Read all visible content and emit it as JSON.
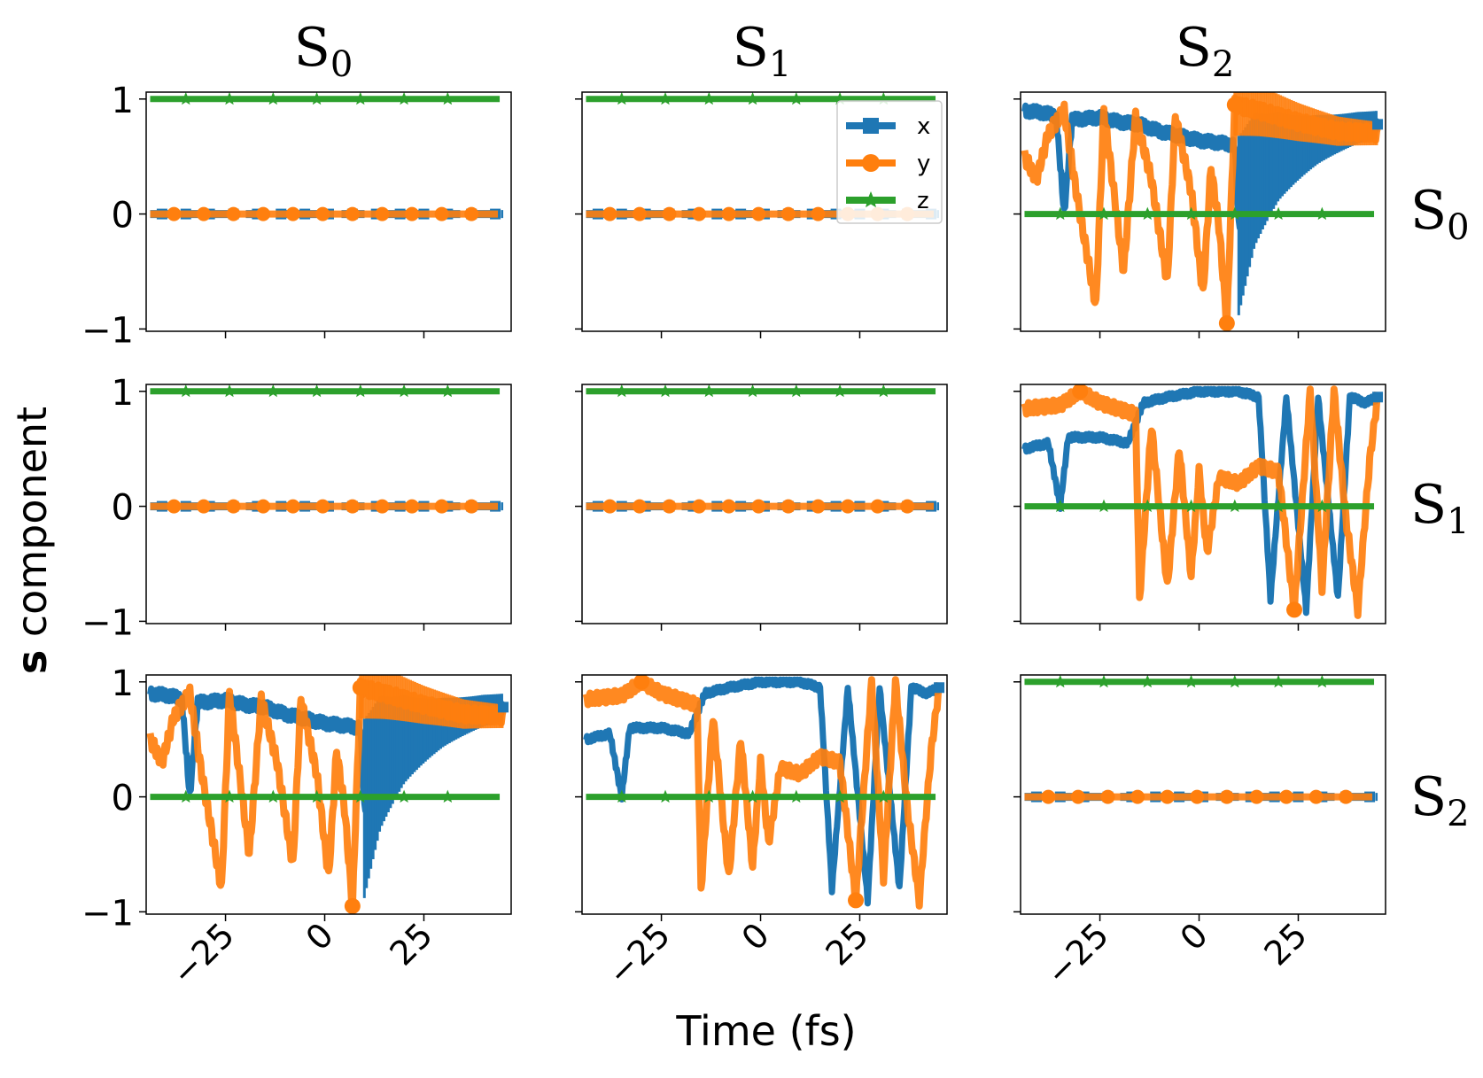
{
  "chart_data": {
    "type": "line",
    "xlabel": "Time (fs)",
    "ylabel_bold": "s",
    "ylabel_rest": " component",
    "column_titles": [
      {
        "base": "S",
        "sub": "0"
      },
      {
        "base": "S",
        "sub": "1"
      },
      {
        "base": "S",
        "sub": "2"
      }
    ],
    "row_titles": [
      {
        "base": "S",
        "sub": "0"
      },
      {
        "base": "S",
        "sub": "1"
      },
      {
        "base": "S",
        "sub": "2"
      }
    ],
    "xlim": [
      -45,
      47
    ],
    "ylim": [
      -1.02,
      1.06
    ],
    "xticks": [
      -25,
      0,
      25
    ],
    "xtick_labels": [
      "−25",
      "0",
      "25"
    ],
    "yticks": [
      1,
      0,
      -1
    ],
    "ytick_labels": [
      "1",
      "0",
      "−1"
    ],
    "legend": {
      "location": "upper right of panel row 1 / column 2",
      "entries": [
        {
          "label": "x",
          "color": "#1f77b4",
          "marker": "square"
        },
        {
          "label": "y",
          "color": "#ff7f0e",
          "marker": "circle"
        },
        {
          "label": "z",
          "color": "#2ca02c",
          "marker": "star"
        }
      ]
    },
    "colors": {
      "x": "#1f77b4",
      "y": "#ff7f0e",
      "z": "#2ca02c"
    },
    "panels": [
      {
        "row": 0,
        "col": 0,
        "kind": "constant",
        "series": {
          "x": 0,
          "y": 0,
          "z": 1
        }
      },
      {
        "row": 0,
        "col": 1,
        "kind": "constant",
        "series": {
          "x": 0,
          "y": 0,
          "z": 1
        }
      },
      {
        "row": 0,
        "col": 2,
        "kind": "oscillating",
        "pattern": "A",
        "series": {
          "z": 0
        },
        "x_profile": [
          [
            -44,
            0.9
          ],
          [
            -39,
            0.88
          ],
          [
            -36,
            0.85
          ],
          [
            -34,
            0.0
          ],
          [
            -32,
            0.82
          ],
          [
            -25,
            0.84
          ],
          [
            -20,
            0.8
          ],
          [
            -15,
            0.78
          ],
          [
            -10,
            0.72
          ],
          [
            -5,
            0.68
          ],
          [
            0,
            0.64
          ],
          [
            5,
            0.62
          ],
          [
            9,
            0.6
          ],
          [
            10,
            -0.1
          ],
          [
            14,
            0.3
          ],
          [
            20,
            0.5
          ],
          [
            30,
            0.65
          ],
          [
            40,
            0.75
          ],
          [
            45,
            0.78
          ]
        ],
        "y_profile": [
          [
            -44,
            0.5
          ],
          [
            -41,
            0.3
          ],
          [
            -38,
            0.7
          ],
          [
            -34,
            0.9
          ],
          [
            -31,
            0.2
          ],
          [
            -26,
            -0.8
          ],
          [
            -24,
            0.9
          ],
          [
            -19,
            -0.5
          ],
          [
            -16,
            0.85
          ],
          [
            -12,
            0.3
          ],
          [
            -8,
            -0.6
          ],
          [
            -6,
            0.85
          ],
          [
            -2,
            0.2
          ],
          [
            1,
            -0.7
          ],
          [
            3,
            0.4
          ],
          [
            5,
            -0.1
          ],
          [
            7,
            -0.95
          ],
          [
            9,
            0.95
          ],
          [
            15,
            0.9
          ],
          [
            25,
            0.8
          ],
          [
            35,
            0.72
          ],
          [
            45,
            0.7
          ]
        ]
      },
      {
        "row": 1,
        "col": 0,
        "kind": "constant",
        "series": {
          "x": 0,
          "y": 0,
          "z": 1
        }
      },
      {
        "row": 1,
        "col": 1,
        "kind": "constant",
        "series": {
          "x": 0,
          "y": 0,
          "z": 1
        }
      },
      {
        "row": 1,
        "col": 2,
        "kind": "oscillating",
        "pattern": "B",
        "series": {
          "z": 0
        },
        "x_profile": [
          [
            -44,
            0.5
          ],
          [
            -38,
            0.55
          ],
          [
            -35,
            0.0
          ],
          [
            -33,
            0.6
          ],
          [
            -25,
            0.6
          ],
          [
            -18,
            0.55
          ],
          [
            -14,
            0.9
          ],
          [
            -8,
            0.95
          ],
          [
            0,
            1.0
          ],
          [
            10,
            1.0
          ],
          [
            15,
            0.95
          ],
          [
            18,
            -0.8
          ],
          [
            22,
            0.95
          ],
          [
            27,
            -0.9
          ],
          [
            30,
            0.95
          ],
          [
            35,
            -0.8
          ],
          [
            38,
            0.95
          ],
          [
            42,
            0.9
          ],
          [
            45,
            0.95
          ]
        ],
        "y_profile": [
          [
            -44,
            0.85
          ],
          [
            -35,
            0.88
          ],
          [
            -30,
            1.0
          ],
          [
            -25,
            0.9
          ],
          [
            -16,
            0.8
          ],
          [
            -15,
            -0.8
          ],
          [
            -12,
            0.7
          ],
          [
            -8,
            -0.7
          ],
          [
            -5,
            0.5
          ],
          [
            -2,
            -0.6
          ],
          [
            0,
            0.3
          ],
          [
            2,
            -0.4
          ],
          [
            5,
            0.25
          ],
          [
            10,
            0.2
          ],
          [
            15,
            0.35
          ],
          [
            20,
            0.3
          ],
          [
            24,
            -0.9
          ],
          [
            28,
            1.0
          ],
          [
            31,
            -0.7
          ],
          [
            34,
            1.0
          ],
          [
            37,
            -0.1
          ],
          [
            40,
            -0.9
          ],
          [
            43,
            0.4
          ],
          [
            45,
            0.95
          ]
        ]
      },
      {
        "row": 2,
        "col": 0,
        "kind": "oscillating",
        "pattern": "A",
        "series": {
          "z": 0
        },
        "x_profile": [
          [
            -44,
            0.9
          ],
          [
            -39,
            0.88
          ],
          [
            -36,
            0.85
          ],
          [
            -34,
            0.0
          ],
          [
            -32,
            0.82
          ],
          [
            -25,
            0.84
          ],
          [
            -20,
            0.8
          ],
          [
            -15,
            0.78
          ],
          [
            -10,
            0.72
          ],
          [
            -5,
            0.68
          ],
          [
            0,
            0.64
          ],
          [
            5,
            0.62
          ],
          [
            9,
            0.6
          ],
          [
            10,
            -0.1
          ],
          [
            14,
            0.3
          ],
          [
            20,
            0.5
          ],
          [
            30,
            0.65
          ],
          [
            40,
            0.75
          ],
          [
            45,
            0.78
          ]
        ],
        "y_profile": [
          [
            -44,
            0.5
          ],
          [
            -41,
            0.3
          ],
          [
            -38,
            0.7
          ],
          [
            -34,
            0.9
          ],
          [
            -31,
            0.2
          ],
          [
            -26,
            -0.8
          ],
          [
            -24,
            0.9
          ],
          [
            -19,
            -0.5
          ],
          [
            -16,
            0.85
          ],
          [
            -12,
            0.3
          ],
          [
            -8,
            -0.6
          ],
          [
            -6,
            0.85
          ],
          [
            -2,
            0.2
          ],
          [
            1,
            -0.7
          ],
          [
            3,
            0.4
          ],
          [
            5,
            -0.1
          ],
          [
            7,
            -0.95
          ],
          [
            9,
            0.95
          ],
          [
            15,
            0.9
          ],
          [
            25,
            0.8
          ],
          [
            35,
            0.72
          ],
          [
            45,
            0.7
          ]
        ]
      },
      {
        "row": 2,
        "col": 1,
        "kind": "oscillating",
        "pattern": "B",
        "series": {
          "z": 0
        },
        "x_profile": [
          [
            -44,
            0.5
          ],
          [
            -38,
            0.55
          ],
          [
            -35,
            0.0
          ],
          [
            -33,
            0.6
          ],
          [
            -25,
            0.6
          ],
          [
            -18,
            0.55
          ],
          [
            -14,
            0.9
          ],
          [
            -8,
            0.95
          ],
          [
            0,
            1.0
          ],
          [
            10,
            1.0
          ],
          [
            15,
            0.95
          ],
          [
            18,
            -0.8
          ],
          [
            22,
            0.95
          ],
          [
            27,
            -0.9
          ],
          [
            30,
            0.95
          ],
          [
            35,
            -0.8
          ],
          [
            38,
            0.95
          ],
          [
            42,
            0.9
          ],
          [
            45,
            0.95
          ]
        ],
        "y_profile": [
          [
            -44,
            0.85
          ],
          [
            -35,
            0.88
          ],
          [
            -30,
            1.0
          ],
          [
            -25,
            0.9
          ],
          [
            -16,
            0.8
          ],
          [
            -15,
            -0.8
          ],
          [
            -12,
            0.7
          ],
          [
            -8,
            -0.7
          ],
          [
            -5,
            0.5
          ],
          [
            -2,
            -0.6
          ],
          [
            0,
            0.3
          ],
          [
            2,
            -0.4
          ],
          [
            5,
            0.25
          ],
          [
            10,
            0.2
          ],
          [
            15,
            0.35
          ],
          [
            20,
            0.3
          ],
          [
            24,
            -0.9
          ],
          [
            28,
            1.0
          ],
          [
            31,
            -0.7
          ],
          [
            34,
            1.0
          ],
          [
            37,
            -0.1
          ],
          [
            40,
            -0.9
          ],
          [
            43,
            0.4
          ],
          [
            45,
            0.95
          ]
        ]
      },
      {
        "row": 2,
        "col": 2,
        "kind": "constant",
        "series": {
          "x": 0,
          "y": 0,
          "z": 1
        }
      }
    ]
  }
}
